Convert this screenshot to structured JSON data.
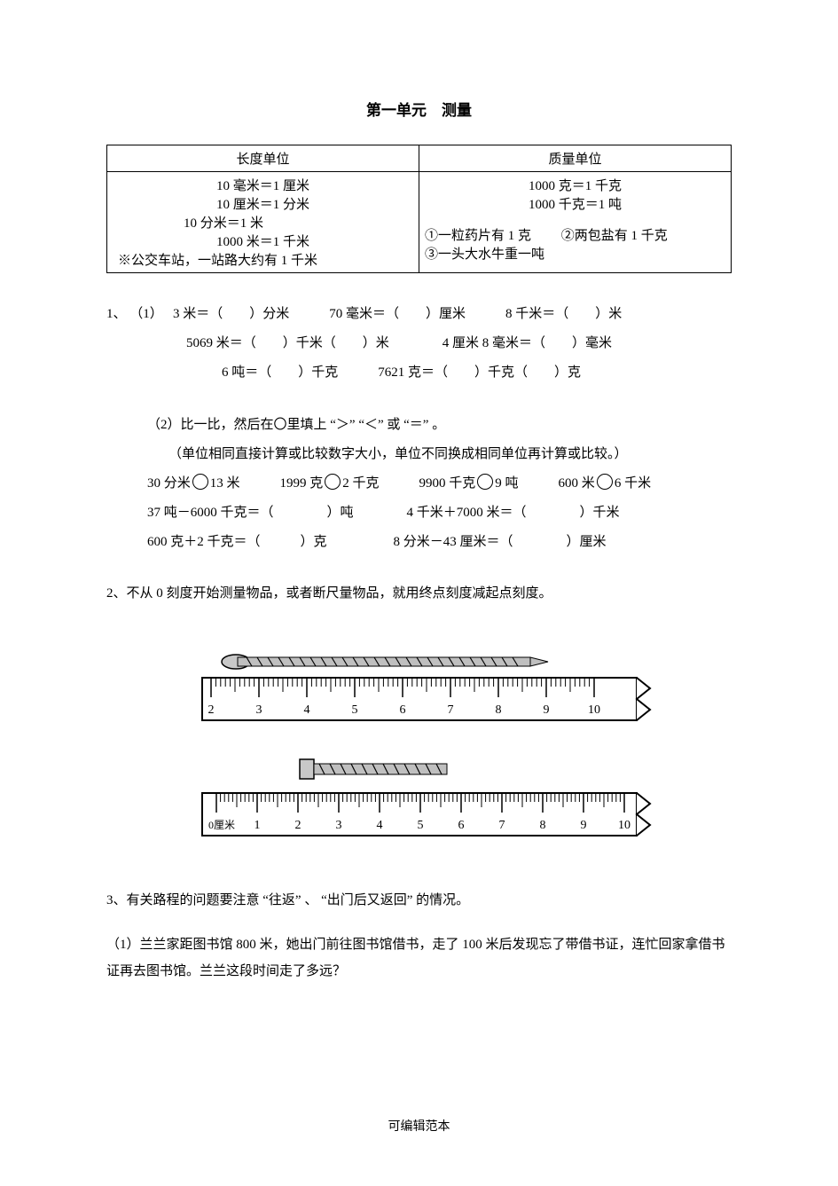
{
  "title": "第一单元　测量",
  "table": {
    "header_left": "长度单位",
    "header_right": "质量单位",
    "left_lines": [
      "10 毫米＝1 厘米",
      "10 厘米＝1 分米",
      "10 分米＝1 米",
      "1000 米＝1 千米"
    ],
    "left_note": "※公交车站，一站路大约有 1 千米",
    "right_top": [
      "1000 克＝1 千克",
      "1000 千克＝1 吨"
    ],
    "right_bottom_1": "①一粒药片有 1 克",
    "right_bottom_2": "②两包盐有 1 千克",
    "right_bottom_3": "③一头大水牛重一吨"
  },
  "q1": {
    "num": "1、",
    "p1_label": "（1）",
    "line1": "3 米＝（　　）分米　　　70 毫米＝（　　）厘米　　　8 千米＝（　　）米",
    "line2": "5069 米＝（　　）千米（　　）米　　　　4 厘米 8 毫米＝（　　）毫米",
    "line3": "6 吨＝（　　）千克　　　7621 克＝（　　）千克（　　）克",
    "p2_label": "（2）比一比，然后在〇里填上 “＞”  “＜” 或 “＝” 。",
    "p2_hint": "（单位相同直接计算或比较数字大小，单位不同换成相同单位再计算或比较。）",
    "line4a": "30 分米",
    "line4b": "13 米　　　1999 克",
    "line4c": "2 千克　　　9900 千克",
    "line4d": "9 吨　　　600 米",
    "line4e": "6 千米",
    "line5": "37 吨－6000 千克＝（　　　　）吨　　　　4 千米＋7000 米＝（　　　　）千米",
    "line6": "600 克＋2 千克＝（　　　）克　　　　　8 分米－43 厘米＝（　　　　）厘米"
  },
  "q2": {
    "text": "2、不从 0 刻度开始测量物品，或者断尺量物品，就用终点刻度减起点刻度。"
  },
  "ruler1": {
    "start": 2,
    "end": 10,
    "ticks": [
      2,
      3,
      4,
      5,
      6,
      7,
      8,
      9,
      10
    ],
    "object_start": 2.0,
    "object_end": 8.2,
    "color_ruler": "#000000",
    "color_tick_label": "#000000",
    "bg": "#ffffff"
  },
  "ruler2": {
    "label_zero": "0厘米",
    "ticks": [
      1,
      2,
      3,
      4,
      5,
      6,
      7,
      8,
      9,
      10
    ],
    "object_start": 2.2,
    "object_end": 5.6
  },
  "q3": {
    "text": "3、有关路程的问题要注意 “往返” 、 “出门后又返回” 的情况。",
    "sub1": "（1）兰兰家距图书馆 800 米，她出门前往图书馆借书，走了 100 米后发现忘了带借书证，连忙回家拿借书证再去图书馆。兰兰这段时间走了多远？"
  },
  "footer": "可编辑范本"
}
